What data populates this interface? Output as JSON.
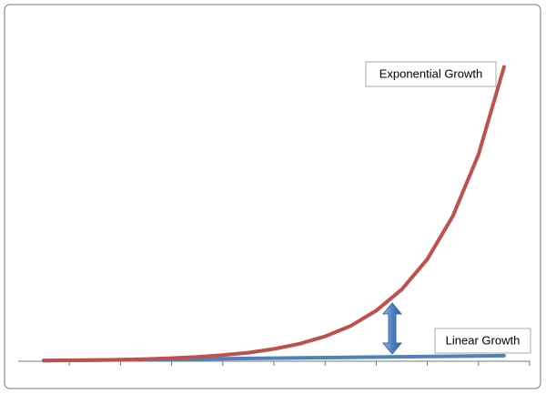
{
  "chart_data": {
    "type": "line",
    "xlim": [
      0,
      10
    ],
    "xticks": [
      1,
      2,
      3,
      4,
      5,
      6,
      7,
      8,
      9,
      10
    ],
    "ylim": [
      0,
      100
    ],
    "series": [
      {
        "name": "Exponential Growth",
        "color": "#c0504d",
        "x": [
          0.5,
          1,
          1.5,
          2,
          2.5,
          3,
          3.5,
          4,
          4.5,
          5,
          5.5,
          6,
          6.5,
          7,
          7.5,
          8,
          8.5,
          9,
          9.5
        ],
        "values": [
          0.2,
          0.3,
          0.4,
          0.5,
          0.7,
          1.0,
          1.4,
          2.0,
          2.8,
          4.0,
          5.7,
          8.1,
          11.5,
          16.5,
          23.4,
          33.3,
          47.4,
          67.4,
          96
        ]
      },
      {
        "name": "Linear Growth",
        "color": "#4f81bd",
        "x": [
          0.5,
          9.5
        ],
        "values": [
          0.2,
          1.8
        ]
      }
    ]
  }
}
